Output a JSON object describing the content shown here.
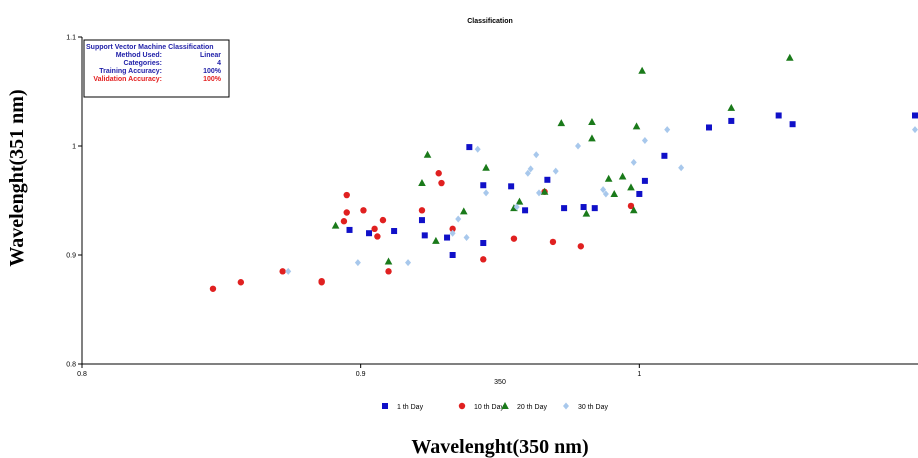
{
  "chart_data": {
    "type": "scatter",
    "title": "Classification",
    "xlabel_small": "350",
    "xlabel": "Wavelenght(350 nm)",
    "ylabel": "Wavelenght(351 nm)",
    "xlim": [
      0.8,
      1.1
    ],
    "ylim": [
      0.8,
      1.1
    ],
    "x_ticks": [
      "0.8",
      "0.9",
      "1"
    ],
    "y_ticks": [
      "0.8",
      "0.9",
      "1",
      "1.1"
    ],
    "legend_position": "bottom",
    "info_box": {
      "heading": "Support Vector Machine Classification",
      "rows": [
        {
          "label": "Method Used:",
          "value": "Linear",
          "color": "#1f1fa8"
        },
        {
          "label": "Categories:",
          "value": "4",
          "color": "#1f1fa8"
        },
        {
          "label": "Training Accuracy:",
          "value": "100%",
          "color": "#1f1fa8"
        },
        {
          "label": "Validation Accuracy:",
          "value": "100%",
          "color": "#e32020"
        }
      ]
    },
    "series": [
      {
        "name": "1 th Day",
        "marker": "square",
        "color": "#1010c8",
        "points": [
          [
            0.896,
            0.923
          ],
          [
            0.903,
            0.92
          ],
          [
            0.912,
            0.922
          ],
          [
            0.922,
            0.932
          ],
          [
            0.923,
            0.918
          ],
          [
            0.931,
            0.916
          ],
          [
            0.933,
            0.9
          ],
          [
            0.939,
            0.999
          ],
          [
            0.944,
            0.964
          ],
          [
            0.944,
            0.911
          ],
          [
            0.954,
            0.963
          ],
          [
            0.959,
            0.941
          ],
          [
            0.967,
            0.969
          ],
          [
            0.973,
            0.943
          ],
          [
            0.98,
            0.944
          ],
          [
            0.984,
            0.943
          ],
          [
            1.0,
            0.956
          ],
          [
            1.002,
            0.968
          ],
          [
            1.009,
            0.991
          ],
          [
            1.025,
            1.017
          ],
          [
            1.033,
            1.023
          ],
          [
            1.05,
            1.028
          ],
          [
            1.055,
            1.02
          ],
          [
            1.1,
            1.028
          ]
        ]
      },
      {
        "name": "10 th Day",
        "marker": "circle",
        "color": "#e02020",
        "points": [
          [
            0.847,
            0.869
          ],
          [
            0.857,
            0.875
          ],
          [
            0.872,
            0.885
          ],
          [
            0.886,
            0.876
          ],
          [
            0.886,
            0.875
          ],
          [
            0.894,
            0.931
          ],
          [
            0.895,
            0.955
          ],
          [
            0.895,
            0.939
          ],
          [
            0.901,
            0.941
          ],
          [
            0.905,
            0.924
          ],
          [
            0.906,
            0.917
          ],
          [
            0.908,
            0.932
          ],
          [
            0.91,
            0.885
          ],
          [
            0.922,
            0.941
          ],
          [
            0.928,
            0.975
          ],
          [
            0.929,
            0.966
          ],
          [
            0.933,
            0.924
          ],
          [
            0.944,
            0.896
          ],
          [
            0.955,
            0.915
          ],
          [
            0.966,
            0.958
          ],
          [
            0.969,
            0.912
          ],
          [
            0.979,
            0.908
          ],
          [
            0.997,
            0.945
          ]
        ]
      },
      {
        "name": "20 th Day",
        "marker": "triangle",
        "color": "#1a7a1a",
        "points": [
          [
            0.891,
            0.927
          ],
          [
            0.91,
            0.894
          ],
          [
            0.922,
            0.966
          ],
          [
            0.924,
            0.992
          ],
          [
            0.927,
            0.913
          ],
          [
            0.937,
            0.94
          ],
          [
            0.945,
            0.98
          ],
          [
            0.955,
            0.943
          ],
          [
            0.957,
            0.949
          ],
          [
            0.966,
            0.958
          ],
          [
            0.972,
            1.021
          ],
          [
            0.981,
            0.938
          ],
          [
            0.983,
            1.022
          ],
          [
            0.983,
            1.007
          ],
          [
            0.989,
            0.97
          ],
          [
            0.991,
            0.956
          ],
          [
            0.994,
            0.972
          ],
          [
            0.997,
            0.962
          ],
          [
            0.998,
            0.941
          ],
          [
            0.999,
            1.018
          ],
          [
            1.001,
            1.069
          ],
          [
            1.033,
            1.035
          ],
          [
            1.054,
            1.081
          ]
        ]
      },
      {
        "name": "30 th Day",
        "marker": "diamond",
        "color": "#a8c8ec",
        "points": [
          [
            0.874,
            0.885
          ],
          [
            0.899,
            0.893
          ],
          [
            0.917,
            0.893
          ],
          [
            0.933,
            0.92
          ],
          [
            0.935,
            0.933
          ],
          [
            0.938,
            0.916
          ],
          [
            0.942,
            0.997
          ],
          [
            0.945,
            0.957
          ],
          [
            0.956,
            0.944
          ],
          [
            0.96,
            0.975
          ],
          [
            0.961,
            0.979
          ],
          [
            0.963,
            0.992
          ],
          [
            0.964,
            0.957
          ],
          [
            0.97,
            0.977
          ],
          [
            0.978,
            1.0
          ],
          [
            0.987,
            0.96
          ],
          [
            0.988,
            0.956
          ],
          [
            0.998,
            0.985
          ],
          [
            1.002,
            1.005
          ],
          [
            1.01,
            1.015
          ],
          [
            1.015,
            0.98
          ],
          [
            1.1,
            1.015
          ]
        ]
      }
    ]
  }
}
